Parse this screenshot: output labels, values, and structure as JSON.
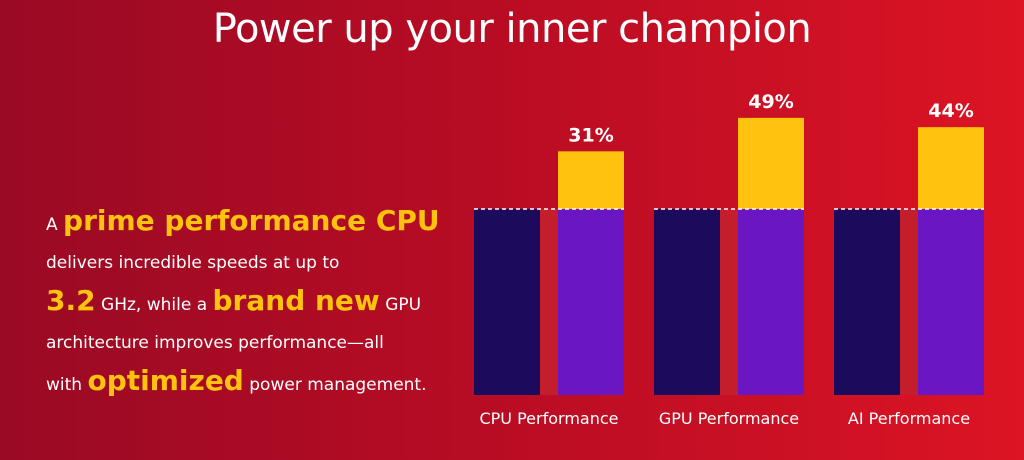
{
  "title": "Power up your inner champion",
  "body": {
    "a": "A",
    "prime": "prime performance CPU",
    "line2": "delivers incredible speeds at up to",
    "ghz_value": "3.2",
    "ghz_rest": "GHz, while a",
    "brand_new": "brand new",
    "gpu": "GPU",
    "line4": "architecture improves performance—all",
    "with": "with",
    "optimized": "optimized",
    "power": "power management."
  },
  "colors": {
    "baseline_bar": "#1c0a5c",
    "improved_bar": "#6a16c2",
    "gain_segment": "#ffc20e",
    "gap": "#c41e2c",
    "accent_text": "#ffc20e"
  },
  "chart_data": {
    "type": "bar",
    "categories": [
      "CPU Performance",
      "GPU Performance",
      "AI Performance"
    ],
    "labels": [
      "31%",
      "49%",
      "44%"
    ],
    "series": [
      {
        "values": [
          100,
          100,
          100
        ]
      },
      {
        "values": [
          131,
          149,
          144
        ]
      }
    ],
    "ylim": [
      0,
      160
    ],
    "grid": false
  }
}
